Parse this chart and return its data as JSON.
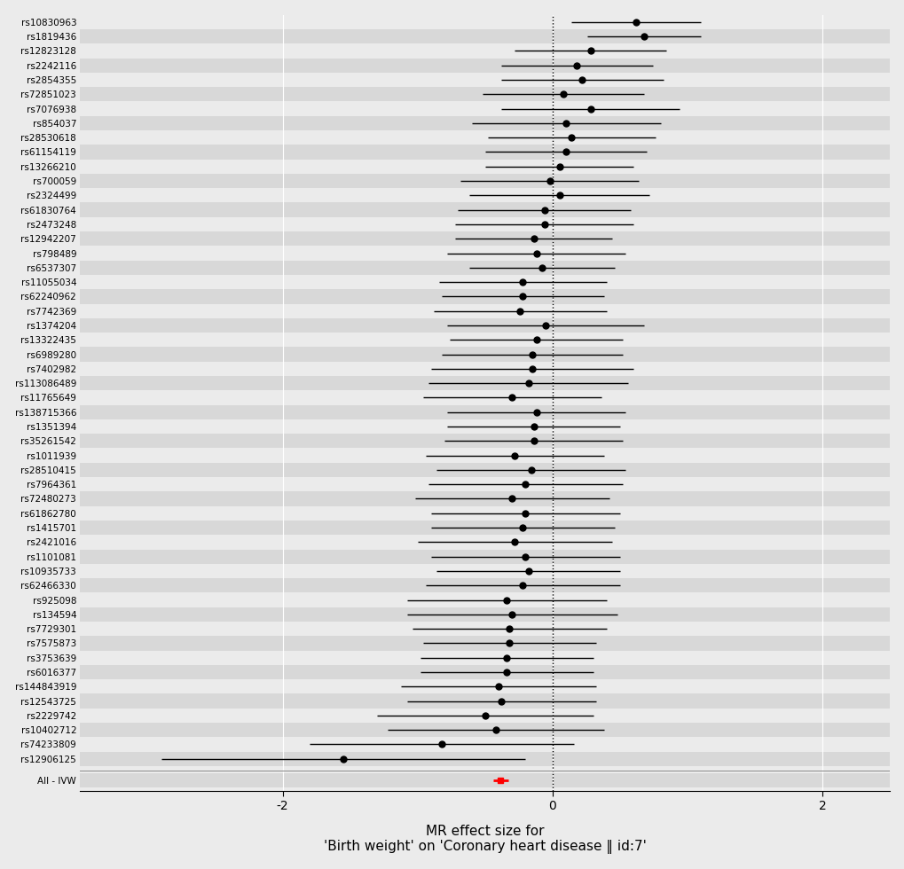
{
  "snps": [
    "rs10830963",
    "rs1819436",
    "rs12823128",
    "rs2242116",
    "rs2854355",
    "rs72851023",
    "rs7076938",
    "rs854037",
    "rs28530618",
    "rs61154119",
    "rs13266210",
    "rs700059",
    "rs2324499",
    "rs61830764",
    "rs2473248",
    "rs12942207",
    "rs798489",
    "rs6537307",
    "rs11055034",
    "rs62240962",
    "rs7742369",
    "rs1374204",
    "rs13322435",
    "rs6989280",
    "rs7402982",
    "rs113086489",
    "rs11765649",
    "rs138715366",
    "rs1351394",
    "rs35261542",
    "rs1011939",
    "rs28510415",
    "rs7964361",
    "rs72480273",
    "rs61862780",
    "rs1415701",
    "rs2421016",
    "rs1101081",
    "rs10935733",
    "rs62466330",
    "rs925098",
    "rs134594",
    "rs7729301",
    "rs7575873",
    "rs3753639",
    "rs6016377",
    "rs144843919",
    "rs12543725",
    "rs2229742",
    "rs10402712",
    "rs74233809",
    "rs12906125"
  ],
  "estimates": [
    0.62,
    0.68,
    0.28,
    0.18,
    0.22,
    0.08,
    0.28,
    0.1,
    0.14,
    0.1,
    0.05,
    -0.02,
    0.05,
    -0.06,
    -0.06,
    -0.14,
    -0.12,
    -0.08,
    -0.22,
    -0.22,
    -0.24,
    -0.05,
    -0.12,
    -0.15,
    -0.15,
    -0.18,
    -0.3,
    -0.12,
    -0.14,
    -0.14,
    -0.28,
    -0.16,
    -0.2,
    -0.3,
    -0.2,
    -0.22,
    -0.28,
    -0.2,
    -0.18,
    -0.22,
    -0.34,
    -0.3,
    -0.32,
    -0.32,
    -0.34,
    -0.34,
    -0.4,
    -0.38,
    -0.5,
    -0.42,
    -0.82,
    -1.55
  ],
  "ci_low": [
    0.14,
    0.26,
    -0.28,
    -0.38,
    -0.38,
    -0.52,
    -0.38,
    -0.6,
    -0.48,
    -0.5,
    -0.5,
    -0.68,
    -0.62,
    -0.7,
    -0.72,
    -0.72,
    -0.78,
    -0.62,
    -0.84,
    -0.82,
    -0.88,
    -0.78,
    -0.76,
    -0.82,
    -0.9,
    -0.92,
    -0.96,
    -0.78,
    -0.78,
    -0.8,
    -0.94,
    -0.86,
    -0.92,
    -1.02,
    -0.9,
    -0.9,
    -1.0,
    -0.9,
    -0.86,
    -0.94,
    -1.08,
    -1.08,
    -1.04,
    -0.96,
    -0.98,
    -0.98,
    -1.12,
    -1.08,
    -1.3,
    -1.22,
    -1.8,
    -2.9
  ],
  "ci_high": [
    1.1,
    1.1,
    0.84,
    0.74,
    0.82,
    0.68,
    0.94,
    0.8,
    0.76,
    0.7,
    0.6,
    0.64,
    0.72,
    0.58,
    0.6,
    0.44,
    0.54,
    0.46,
    0.4,
    0.38,
    0.4,
    0.68,
    0.52,
    0.52,
    0.6,
    0.56,
    0.36,
    0.54,
    0.5,
    0.52,
    0.38,
    0.54,
    0.52,
    0.42,
    0.5,
    0.46,
    0.44,
    0.5,
    0.5,
    0.5,
    0.4,
    0.48,
    0.4,
    0.32,
    0.3,
    0.3,
    0.32,
    0.32,
    0.3,
    0.38,
    0.16,
    -0.2
  ],
  "ivw_estimate": -0.385,
  "ivw_ci_low": -0.44,
  "ivw_ci_high": -0.33,
  "x_min": -3.5,
  "x_max": 2.5,
  "x_ticks": [
    -2,
    0,
    2
  ],
  "vline_x": 0.0,
  "dot_color": "#000000",
  "ivw_color": "#FF0000",
  "bg_color_odd": "#EBEBEB",
  "bg_color_even": "#D8D8D8",
  "xlabel_line1": "MR effect size for",
  "xlabel_line2": "'Birth weight' on 'Coronary heart disease ‖ id:7'",
  "dot_size": 5,
  "ivw_label": "All - IVW"
}
